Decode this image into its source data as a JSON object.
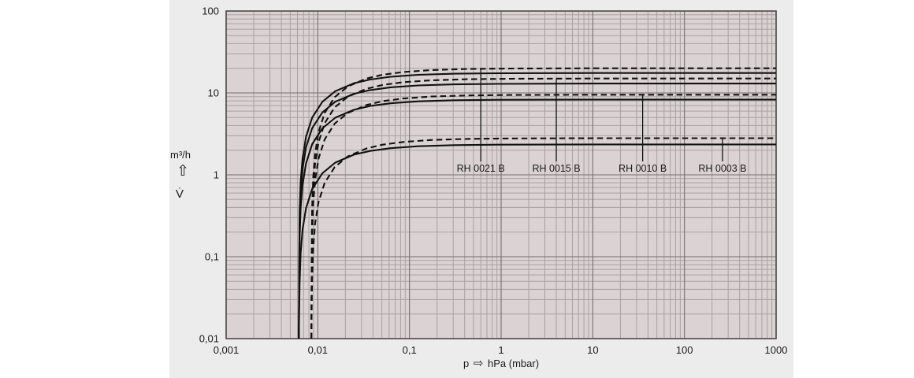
{
  "chart_data": {
    "type": "line",
    "title": "",
    "xlabel": "p → hPa (mbar)",
    "ylabel": "V̇ (m³/h)",
    "xlabel_parts": {
      "prefix": "p",
      "arrow": "⇨",
      "suffix": "hPa (mbar)"
    },
    "ylabel_parts": {
      "unit": "m³/h",
      "arrow": "⇧",
      "symbol": "V̇"
    },
    "x_axis": {
      "scale": "log",
      "min": 0.001,
      "max": 1000,
      "tick_values": [
        0.001,
        0.01,
        0.1,
        1,
        10,
        100,
        1000
      ],
      "tick_labels": [
        "0,001",
        "0,01",
        "0,1",
        "1",
        "10",
        "100",
        "1000"
      ]
    },
    "y_axis": {
      "scale": "log",
      "min": 0.01,
      "max": 100,
      "tick_values": [
        0.01,
        0.1,
        1,
        10,
        100
      ],
      "tick_labels": [
        "0,01",
        "0,1",
        "1",
        "10",
        "100"
      ]
    },
    "grid": "log-minor-and-major",
    "legend_position": "none",
    "series": [
      {
        "name": "RH 0021 B",
        "line_style": "solid",
        "saturation_m3h": 17.5,
        "ultimate_pressure_hPa": 0.0062,
        "points": [
          [
            0.0062,
            0.009
          ],
          [
            0.00632,
            0.343
          ],
          [
            0.00651,
            0.833
          ],
          [
            0.00682,
            1.591
          ],
          [
            0.00744,
            2.917
          ],
          [
            0.00868,
            5.0
          ],
          [
            0.0112,
            7.778
          ],
          [
            0.0155,
            10.5
          ],
          [
            0.0248,
            13.13
          ],
          [
            0.0372,
            14.58
          ],
          [
            0.062,
            15.75
          ],
          [
            0.124,
            16.63
          ],
          [
            0.31,
            17.15
          ],
          [
            0.93,
            17.38
          ],
          [
            10,
            17.5
          ],
          [
            100,
            17.5
          ],
          [
            1000,
            17.5
          ]
        ]
      },
      {
        "name": "RH 0021 B",
        "line_style": "dashed",
        "saturation_m3h": 20,
        "ultimate_pressure_hPa": 0.0085,
        "points": [
          [
            0.0085,
            0.01
          ],
          [
            0.00867,
            0.392
          ],
          [
            0.00893,
            0.952
          ],
          [
            0.00935,
            1.818
          ],
          [
            0.0102,
            3.333
          ],
          [
            0.0119,
            5.714
          ],
          [
            0.0153,
            8.889
          ],
          [
            0.0213,
            12.0
          ],
          [
            0.034,
            15.0
          ],
          [
            0.051,
            16.67
          ],
          [
            0.085,
            18.0
          ],
          [
            0.17,
            19.0
          ],
          [
            0.425,
            19.6
          ],
          [
            1.275,
            19.87
          ],
          [
            10,
            20
          ],
          [
            100,
            20
          ],
          [
            1000,
            20
          ]
        ]
      },
      {
        "name": "RH 0015 B",
        "line_style": "solid",
        "saturation_m3h": 13,
        "ultimate_pressure_hPa": 0.0062,
        "points": [
          [
            0.0062,
            0.007
          ],
          [
            0.00632,
            0.255
          ],
          [
            0.00651,
            0.619
          ],
          [
            0.00682,
            1.182
          ],
          [
            0.00744,
            2.167
          ],
          [
            0.00868,
            3.714
          ],
          [
            0.0112,
            5.778
          ],
          [
            0.0155,
            7.8
          ],
          [
            0.0248,
            9.75
          ],
          [
            0.0372,
            10.83
          ],
          [
            0.062,
            11.7
          ],
          [
            0.124,
            12.35
          ],
          [
            0.31,
            12.74
          ],
          [
            0.93,
            12.91
          ],
          [
            10,
            13
          ],
          [
            100,
            13
          ],
          [
            1000,
            13
          ]
        ]
      },
      {
        "name": "RH 0015 B",
        "line_style": "dashed",
        "saturation_m3h": 15,
        "ultimate_pressure_hPa": 0.0085,
        "points": [
          [
            0.0085,
            0.008
          ],
          [
            0.00867,
            0.294
          ],
          [
            0.00893,
            0.714
          ],
          [
            0.00935,
            1.364
          ],
          [
            0.0102,
            2.5
          ],
          [
            0.0119,
            4.286
          ],
          [
            0.0153,
            6.667
          ],
          [
            0.0213,
            9.0
          ],
          [
            0.034,
            11.25
          ],
          [
            0.051,
            12.5
          ],
          [
            0.085,
            13.5
          ],
          [
            0.17,
            14.25
          ],
          [
            0.425,
            14.7
          ],
          [
            1.275,
            14.9
          ],
          [
            10,
            15
          ],
          [
            100,
            15
          ],
          [
            1000,
            15
          ]
        ]
      },
      {
        "name": "RH 0010 B",
        "line_style": "solid",
        "saturation_m3h": 8.3,
        "ultimate_pressure_hPa": 0.0062,
        "points": [
          [
            0.0062,
            0.004
          ],
          [
            0.00632,
            0.163
          ],
          [
            0.00651,
            0.395
          ],
          [
            0.00682,
            0.755
          ],
          [
            0.00744,
            1.383
          ],
          [
            0.00868,
            2.371
          ],
          [
            0.0112,
            3.689
          ],
          [
            0.0155,
            4.98
          ],
          [
            0.0248,
            6.225
          ],
          [
            0.0372,
            6.917
          ],
          [
            0.062,
            7.47
          ],
          [
            0.124,
            7.885
          ],
          [
            0.31,
            8.134
          ],
          [
            0.93,
            8.245
          ],
          [
            10,
            8.3
          ],
          [
            100,
            8.3
          ],
          [
            1000,
            8.3
          ]
        ]
      },
      {
        "name": "RH 0010 B",
        "line_style": "dashed",
        "saturation_m3h": 9.5,
        "ultimate_pressure_hPa": 0.0085,
        "points": [
          [
            0.0085,
            0.005
          ],
          [
            0.00867,
            0.186
          ],
          [
            0.00893,
            0.452
          ],
          [
            0.00935,
            0.864
          ],
          [
            0.0102,
            1.583
          ],
          [
            0.0119,
            2.714
          ],
          [
            0.0153,
            4.222
          ],
          [
            0.0213,
            5.7
          ],
          [
            0.034,
            7.125
          ],
          [
            0.051,
            7.917
          ],
          [
            0.085,
            8.55
          ],
          [
            0.17,
            9.025
          ],
          [
            0.425,
            9.31
          ],
          [
            1.275,
            9.437
          ],
          [
            10,
            9.5
          ],
          [
            100,
            9.5
          ],
          [
            1000,
            9.5
          ]
        ]
      },
      {
        "name": "RH 0003 B",
        "line_style": "solid",
        "saturation_m3h": 2.35,
        "ultimate_pressure_hPa": 0.0062,
        "points": [
          [
            0.0062,
            0.001
          ],
          [
            0.00632,
            0.046
          ],
          [
            0.00651,
            0.112
          ],
          [
            0.00682,
            0.214
          ],
          [
            0.00744,
            0.392
          ],
          [
            0.00868,
            0.671
          ],
          [
            0.0112,
            1.044
          ],
          [
            0.0155,
            1.41
          ],
          [
            0.0248,
            1.763
          ],
          [
            0.0372,
            1.958
          ],
          [
            0.062,
            2.115
          ],
          [
            0.124,
            2.233
          ],
          [
            0.31,
            2.303
          ],
          [
            0.93,
            2.334
          ],
          [
            10,
            2.35
          ],
          [
            100,
            2.35
          ],
          [
            1000,
            2.35
          ]
        ]
      },
      {
        "name": "RH 0003 B",
        "line_style": "dashed",
        "saturation_m3h": 2.8,
        "ultimate_pressure_hPa": 0.0085,
        "points": [
          [
            0.0085,
            0.001
          ],
          [
            0.00867,
            0.055
          ],
          [
            0.00893,
            0.133
          ],
          [
            0.00935,
            0.255
          ],
          [
            0.0102,
            0.467
          ],
          [
            0.0119,
            0.8
          ],
          [
            0.0153,
            1.244
          ],
          [
            0.0213,
            1.68
          ],
          [
            0.034,
            2.1
          ],
          [
            0.051,
            2.333
          ],
          [
            0.085,
            2.52
          ],
          [
            0.17,
            2.66
          ],
          [
            0.425,
            2.744
          ],
          [
            1.275,
            2.781
          ],
          [
            10,
            2.8
          ],
          [
            100,
            2.8
          ],
          [
            1000,
            2.8
          ]
        ]
      }
    ],
    "annotations": [
      {
        "text": "RH 0021 B",
        "p": 0.6,
        "v_top": 20
      },
      {
        "text": "RH 0015 B",
        "p": 4,
        "v_top": 15
      },
      {
        "text": "RH 0010 B",
        "p": 35,
        "v_top": 9.5
      },
      {
        "text": "RH 0003 B",
        "p": 260,
        "v_top": 2.8
      }
    ]
  },
  "colors": {
    "page_bg": "#ffffff",
    "panel_bg": "#ececec",
    "plot_bg": "#dbd3d3",
    "grid_minor": "#a9a1a1",
    "grid_major": "#746e6e",
    "plot_border": "#4c4848",
    "curve": "#111111",
    "text": "#1a1a1a"
  }
}
